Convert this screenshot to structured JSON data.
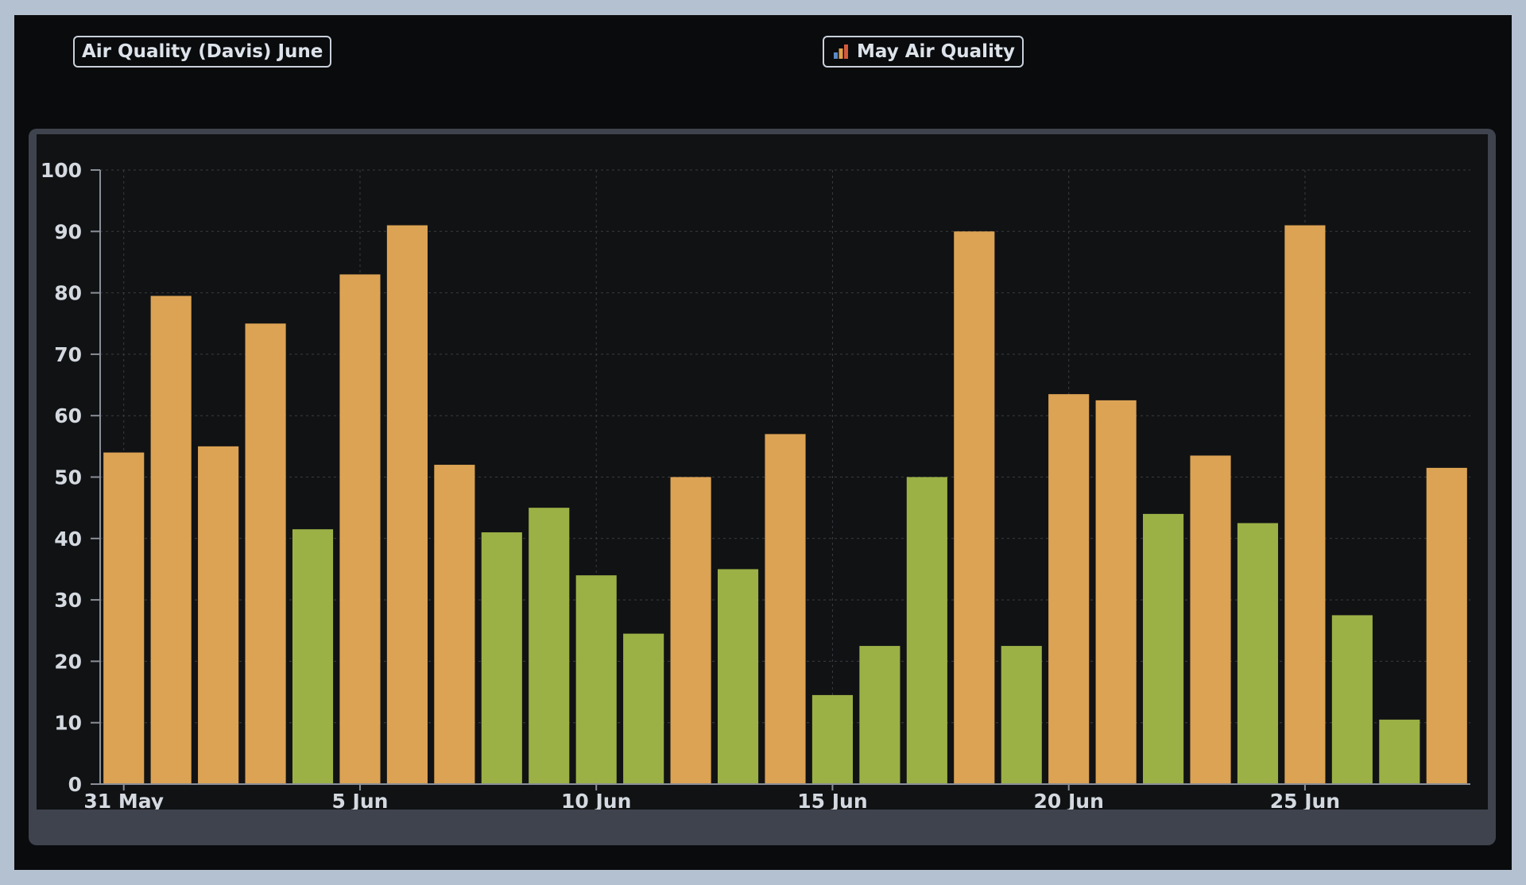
{
  "header": {
    "title_button": "Air Quality (Davis) June",
    "report_button": "May Air Quality",
    "report_icon": "bar-chart-icon"
  },
  "colors": {
    "good": "#9bb146",
    "moderate": "#dca354",
    "grid": "#3a3c40",
    "axis": "#8a8f98",
    "text": "#d4d9e0"
  },
  "chart_data": {
    "type": "bar",
    "title": "",
    "xlabel": "",
    "ylabel": "",
    "ylim": [
      0,
      100
    ],
    "yticks": [
      0,
      10,
      20,
      30,
      40,
      50,
      60,
      70,
      80,
      90,
      100
    ],
    "x_tick_labels": [
      "31 May",
      "5 Jun",
      "10 Jun",
      "15 Jun",
      "20 Jun",
      "25 Jun"
    ],
    "categories": [
      "2024-05-31",
      "2024-06-01",
      "2024-06-02",
      "2024-06-03",
      "2024-06-04",
      "2024-06-05",
      "2024-06-06",
      "2024-06-07",
      "2024-06-08",
      "2024-06-09",
      "2024-06-10",
      "2024-06-11",
      "2024-06-12",
      "2024-06-13",
      "2024-06-14",
      "2024-06-15",
      "2024-06-16",
      "2024-06-17",
      "2024-06-18",
      "2024-06-19",
      "2024-06-20",
      "2024-06-21",
      "2024-06-22",
      "2024-06-23",
      "2024-06-24",
      "2024-06-25",
      "2024-06-26",
      "2024-06-27",
      "2024-06-28"
    ],
    "values": [
      54,
      79.5,
      55,
      75,
      41.5,
      83,
      91,
      52,
      41,
      45,
      34,
      24.5,
      50,
      35,
      57,
      14.5,
      22.5,
      50,
      90,
      22.5,
      63.5,
      62.5,
      44,
      53.5,
      42.5,
      91,
      27.5,
      10.5,
      51.5
    ],
    "bar_colors": [
      "moderate",
      "moderate",
      "moderate",
      "moderate",
      "good",
      "moderate",
      "moderate",
      "moderate",
      "good",
      "good",
      "good",
      "good",
      "moderate",
      "good",
      "moderate",
      "good",
      "good",
      "good",
      "moderate",
      "good",
      "moderate",
      "moderate",
      "good",
      "moderate",
      "good",
      "moderate",
      "good",
      "good",
      "moderate"
    ],
    "grid": true,
    "legend": "none"
  }
}
